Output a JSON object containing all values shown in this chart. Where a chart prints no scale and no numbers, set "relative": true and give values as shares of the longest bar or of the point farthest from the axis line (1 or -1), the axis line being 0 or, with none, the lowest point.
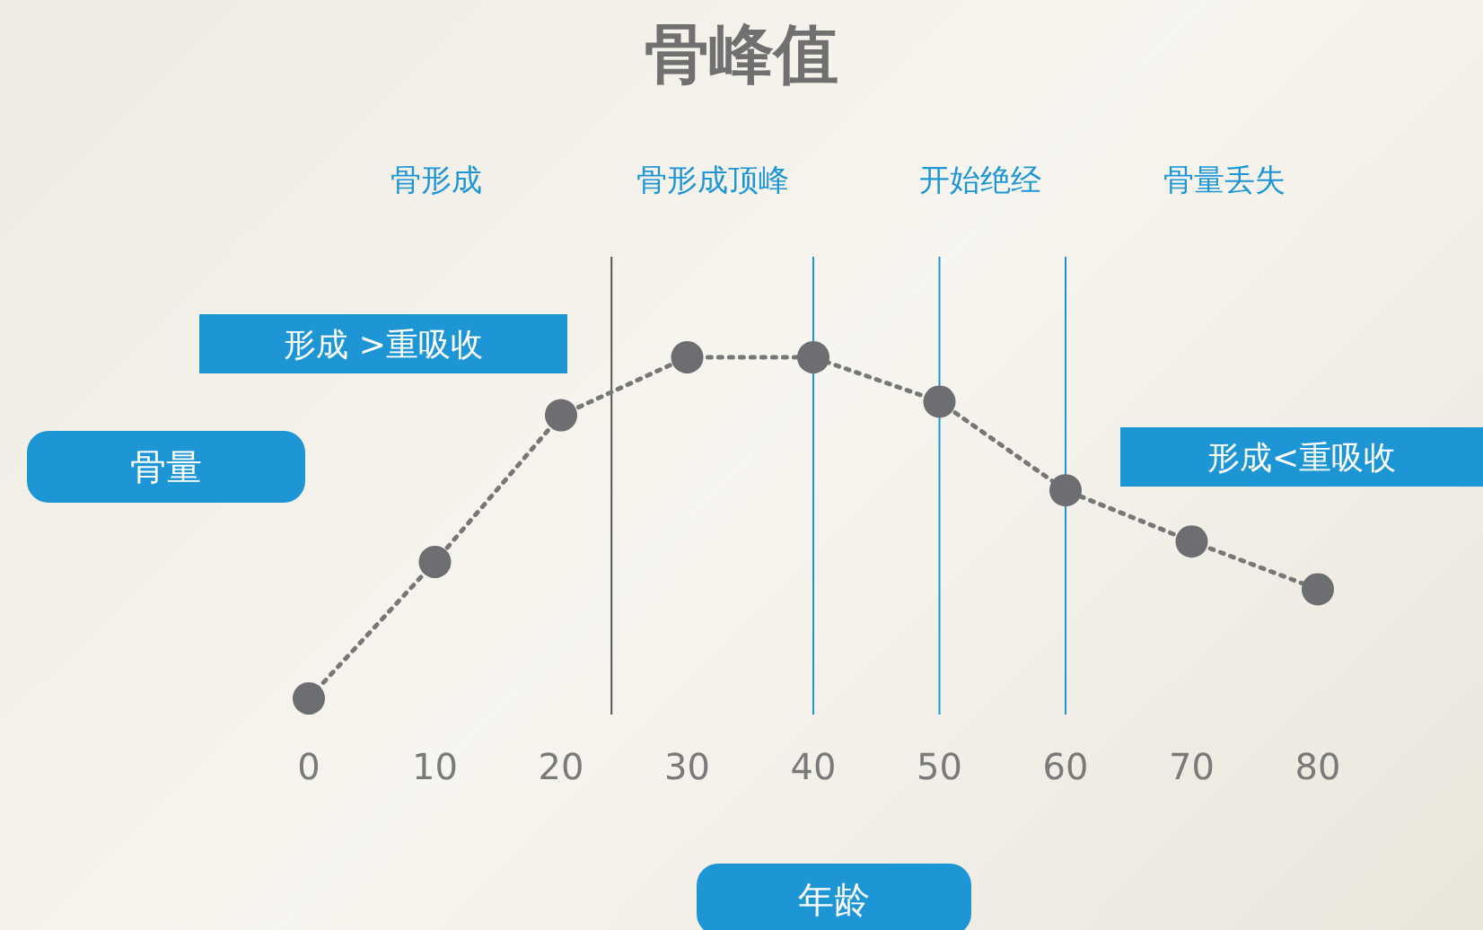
{
  "chart_data": {
    "type": "line",
    "title": "骨峰值",
    "xlabel": "年龄",
    "ylabel": "骨量",
    "relative": true,
    "x": [
      0,
      10,
      20,
      30,
      40,
      50,
      60,
      70,
      80
    ],
    "series": [
      {
        "color": "#6d6e72",
        "values": [
          0,
          0.4,
          0.83,
          1,
          1,
          0.87,
          0.61,
          0.46,
          0.32
        ]
      }
    ],
    "xlim": [
      0,
      80
    ],
    "xticks": [
      0,
      10,
      20,
      30,
      40,
      50,
      60,
      70,
      80
    ],
    "marker": "circle",
    "line_style": "dotted",
    "grid": false,
    "ref_lines": [
      {
        "axis": "x",
        "value": 24,
        "color": "#555555"
      },
      {
        "axis": "x",
        "value": 40,
        "color": "#1e96d6"
      },
      {
        "axis": "x",
        "value": 50,
        "color": "#1e96d6"
      },
      {
        "axis": "x",
        "value": 60,
        "color": "#1e96d6"
      }
    ],
    "annotations": [
      "骨形成",
      "骨形成顶峰",
      "开始绝经",
      "骨量丢失",
      "形成 >重吸收",
      "形成<重吸收"
    ]
  }
}
